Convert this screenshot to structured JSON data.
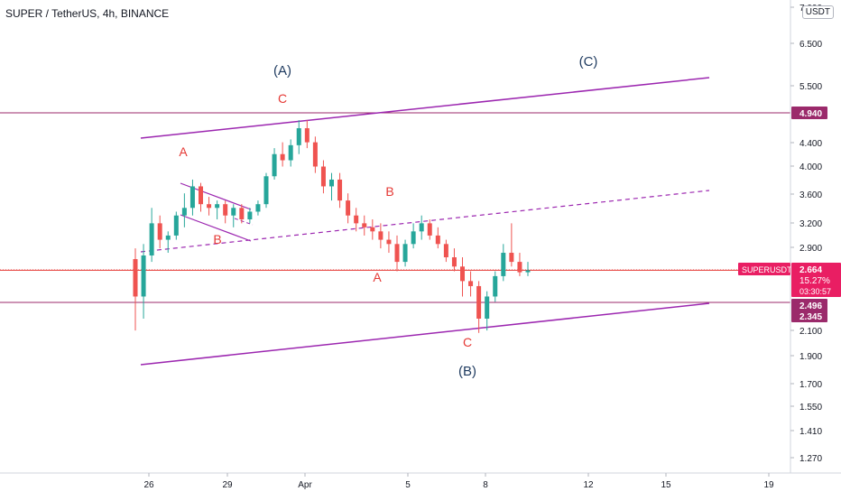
{
  "header": {
    "symbol": "SUPER / TetherUS, 4h, BINANCE",
    "unit": "USDT"
  },
  "colors": {
    "bull": "#26a69a",
    "bear": "#ef5350",
    "purple": "#9c27b0",
    "red": "#e53935",
    "badge_purple": "#9b2a6b",
    "badge_red": "#e91e63",
    "wave_blue": "#1e3a5f",
    "axis": "#131722"
  },
  "price_scale": [
    "7.000",
    "6.500",
    "5.500",
    "4.400",
    "4.000",
    "3.600",
    "3.200",
    "2.900",
    "2.496",
    "2.345",
    "2.100",
    "1.900",
    "1.700",
    "1.550",
    "1.410",
    "1.270"
  ],
  "time_scale": [
    "26",
    "29",
    "Apr",
    "5",
    "8",
    "12",
    "15",
    "19"
  ],
  "price_badges": [
    {
      "label": "4.940",
      "kind": "level",
      "price": 4.94
    },
    {
      "label": "2.496",
      "kind": "level",
      "price": 2.496
    },
    {
      "label": "2.345",
      "kind": "level",
      "price": 2.345
    }
  ],
  "last_price": {
    "symbol": "SUPERUSDT",
    "price": "2.664",
    "change": "15.27%",
    "countdown": "03:30:57",
    "value": 2.664
  },
  "wave_labels": [
    {
      "text": "(A)",
      "color": "blue"
    },
    {
      "text": "(C)",
      "color": "blue"
    },
    {
      "text": "(B)",
      "color": "blue"
    },
    {
      "text": "C",
      "color": "red"
    },
    {
      "text": "A",
      "color": "red"
    },
    {
      "text": "B",
      "color": "red"
    },
    {
      "text": "B",
      "color": "red"
    },
    {
      "text": "A",
      "color": "red"
    },
    {
      "text": "C",
      "color": "red"
    }
  ],
  "chart_data": {
    "type": "candlestick",
    "log_scale": true,
    "ylim": [
      1.2,
      7.0
    ],
    "candles": [
      [
        2.78,
        2.9,
        2.1,
        2.4
      ],
      [
        2.4,
        2.95,
        2.2,
        2.82
      ],
      [
        2.82,
        3.4,
        2.75,
        3.2
      ],
      [
        3.2,
        3.3,
        2.9,
        3.0
      ],
      [
        3.0,
        3.1,
        2.85,
        3.05
      ],
      [
        3.05,
        3.35,
        3.0,
        3.3
      ],
      [
        3.3,
        3.6,
        3.15,
        3.4
      ],
      [
        3.4,
        3.8,
        3.3,
        3.7
      ],
      [
        3.7,
        3.75,
        3.35,
        3.45
      ],
      [
        3.45,
        3.55,
        3.3,
        3.4
      ],
      [
        3.4,
        3.5,
        3.25,
        3.45
      ],
      [
        3.45,
        3.5,
        3.2,
        3.3
      ],
      [
        3.3,
        3.45,
        3.15,
        3.4
      ],
      [
        3.4,
        3.45,
        3.2,
        3.25
      ],
      [
        3.25,
        3.4,
        3.2,
        3.35
      ],
      [
        3.35,
        3.5,
        3.3,
        3.45
      ],
      [
        3.45,
        3.9,
        3.4,
        3.85
      ],
      [
        3.85,
        4.3,
        3.8,
        4.2
      ],
      [
        4.2,
        4.4,
        4.0,
        4.1
      ],
      [
        4.1,
        4.45,
        4.0,
        4.35
      ],
      [
        4.35,
        4.8,
        4.2,
        4.65
      ],
      [
        4.65,
        4.8,
        4.3,
        4.4
      ],
      [
        4.4,
        4.5,
        3.9,
        4.0
      ],
      [
        4.0,
        4.1,
        3.6,
        3.7
      ],
      [
        3.7,
        3.9,
        3.5,
        3.8
      ],
      [
        3.8,
        3.9,
        3.4,
        3.5
      ],
      [
        3.5,
        3.6,
        3.2,
        3.3
      ],
      [
        3.3,
        3.4,
        3.1,
        3.2
      ],
      [
        3.2,
        3.3,
        3.05,
        3.15
      ],
      [
        3.15,
        3.25,
        3.0,
        3.1
      ],
      [
        3.1,
        3.2,
        2.9,
        3.0
      ],
      [
        3.0,
        3.1,
        2.85,
        2.95
      ],
      [
        2.95,
        3.05,
        2.65,
        2.75
      ],
      [
        2.75,
        3.0,
        2.7,
        2.95
      ],
      [
        2.95,
        3.2,
        2.9,
        3.1
      ],
      [
        3.1,
        3.3,
        3.0,
        3.2
      ],
      [
        3.2,
        3.25,
        3.0,
        3.05
      ],
      [
        3.05,
        3.15,
        2.9,
        2.95
      ],
      [
        2.95,
        3.0,
        2.75,
        2.8
      ],
      [
        2.8,
        2.9,
        2.65,
        2.7
      ],
      [
        2.7,
        2.8,
        2.4,
        2.55
      ],
      [
        2.55,
        2.65,
        2.4,
        2.5
      ],
      [
        2.5,
        2.55,
        2.08,
        2.2
      ],
      [
        2.2,
        2.45,
        2.1,
        2.4
      ],
      [
        2.4,
        2.65,
        2.35,
        2.6
      ],
      [
        2.6,
        2.95,
        2.55,
        2.85
      ],
      [
        2.85,
        3.2,
        2.7,
        2.75
      ],
      [
        2.75,
        2.85,
        2.6,
        2.64
      ],
      [
        2.64,
        2.75,
        2.6,
        2.66
      ]
    ],
    "horizontal_levels": [
      4.94,
      2.496,
      2.345
    ],
    "current_price": 2.664
  }
}
